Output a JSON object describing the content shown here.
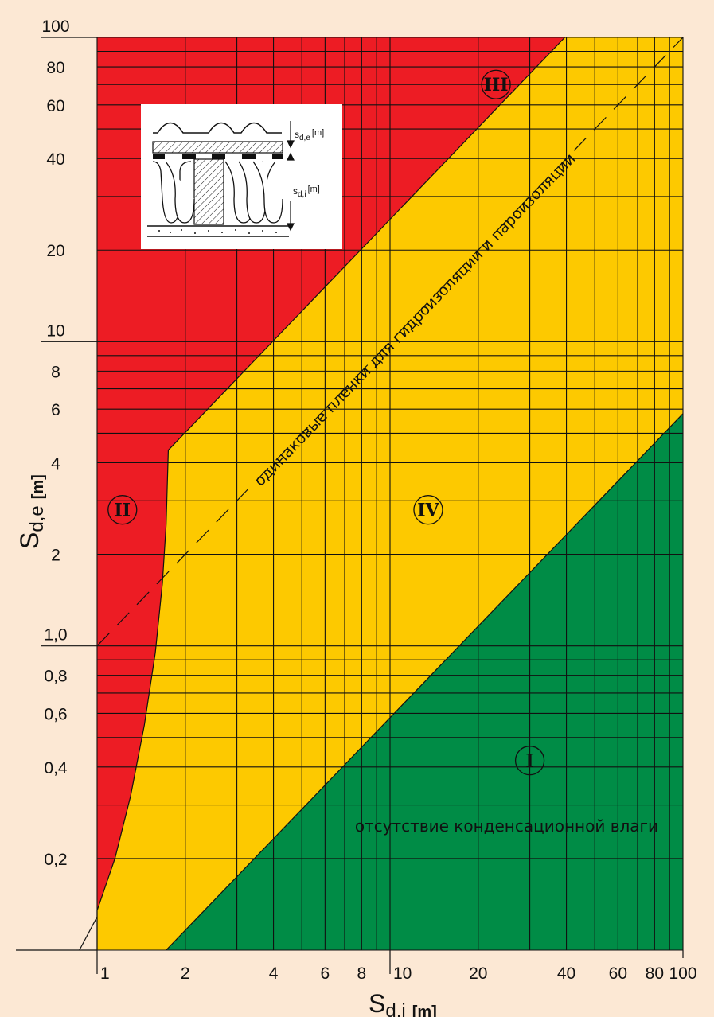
{
  "chart_data": {
    "type": "area",
    "x_scale": "log",
    "y_scale": "log",
    "xlim": [
      1,
      100
    ],
    "ylim": [
      0.1,
      100
    ],
    "grid": true,
    "xlabel": {
      "main": "S",
      "sub": "d,i",
      "unit": "[m]"
    },
    "ylabel": {
      "main": "S",
      "sub": "d,e",
      "unit": "[m]"
    },
    "x_ticks": [
      {
        "value": 1,
        "label": "1"
      },
      {
        "value": 2,
        "label": "2"
      },
      {
        "value": 4,
        "label": "4"
      },
      {
        "value": 6,
        "label": "6"
      },
      {
        "value": 8,
        "label": "8"
      },
      {
        "value": 10,
        "label": "10"
      },
      {
        "value": 20,
        "label": "20"
      },
      {
        "value": 40,
        "label": "40"
      },
      {
        "value": 60,
        "label": "60"
      },
      {
        "value": 80,
        "label": "80"
      },
      {
        "value": 100,
        "label": "100"
      }
    ],
    "y_ticks": [
      {
        "value": 100,
        "label": "100"
      },
      {
        "value": 80,
        "label": "80"
      },
      {
        "value": 60,
        "label": "60"
      },
      {
        "value": 40,
        "label": "40"
      },
      {
        "value": 20,
        "label": "20"
      },
      {
        "value": 10,
        "label": "10"
      },
      {
        "value": 8,
        "label": "8"
      },
      {
        "value": 6,
        "label": "6"
      },
      {
        "value": 4,
        "label": "4"
      },
      {
        "value": 2,
        "label": "2"
      },
      {
        "value": 1,
        "label": "1,0"
      },
      {
        "value": 0.8,
        "label": "0,8"
      },
      {
        "value": 0.6,
        "label": "0,6"
      },
      {
        "value": 0.4,
        "label": "0,4"
      },
      {
        "value": 0.2,
        "label": "0,2"
      }
    ],
    "x_grid": [
      1,
      2,
      3,
      4,
      5,
      6,
      7,
      8,
      9,
      10,
      20,
      30,
      40,
      50,
      60,
      70,
      80,
      90,
      100
    ],
    "y_grid": [
      0.1,
      0.2,
      0.3,
      0.4,
      0.5,
      0.6,
      0.7,
      0.8,
      0.9,
      1,
      2,
      3,
      4,
      5,
      6,
      7,
      8,
      9,
      10,
      20,
      30,
      40,
      50,
      60,
      70,
      80,
      90,
      100
    ],
    "regions": [
      {
        "name": "I",
        "label": "I",
        "color": "#008c46",
        "text": "отсутствие конденсационной влаги",
        "label_at": [
          30,
          0.42
        ],
        "text_at": [
          25,
          0.245
        ],
        "boundary": [
          [
            1.72,
            0.1
          ],
          [
            100,
            5.8
          ],
          [
            100,
            0.1
          ]
        ]
      },
      {
        "name": "II",
        "label": "II",
        "color": "#ed1c24",
        "label_at": [
          1.22,
          2.8
        ],
        "boundary_curve": [
          [
            0.87,
            0.1
          ],
          [
            1.0,
            0.135
          ],
          [
            1.15,
            0.2
          ],
          [
            1.3,
            0.32
          ],
          [
            1.45,
            0.55
          ],
          [
            1.58,
            0.95
          ],
          [
            1.67,
            1.6
          ],
          [
            1.72,
            2.5
          ],
          [
            1.75,
            4.4
          ]
        ]
      },
      {
        "name": "III",
        "label": "III",
        "color": "#ed1c24",
        "label_at": [
          23,
          70
        ],
        "boundary": [
          [
            1.75,
            4.4
          ],
          [
            39.5,
            100
          ]
        ]
      },
      {
        "name": "IV",
        "label": "IV",
        "color": "#fdc900"
      }
    ],
    "reference_line": {
      "text": "одинаковые пленки для гидроизоляции и пароизоляции",
      "points": [
        [
          1,
          1
        ],
        [
          100,
          100
        ]
      ],
      "style": "dashed"
    }
  },
  "inset": {
    "label_top": {
      "main": "s",
      "sub": "d,e",
      "unit": "[m]"
    },
    "label_bottom": {
      "main": "s",
      "sub": "d,i",
      "unit": "[m]"
    }
  }
}
